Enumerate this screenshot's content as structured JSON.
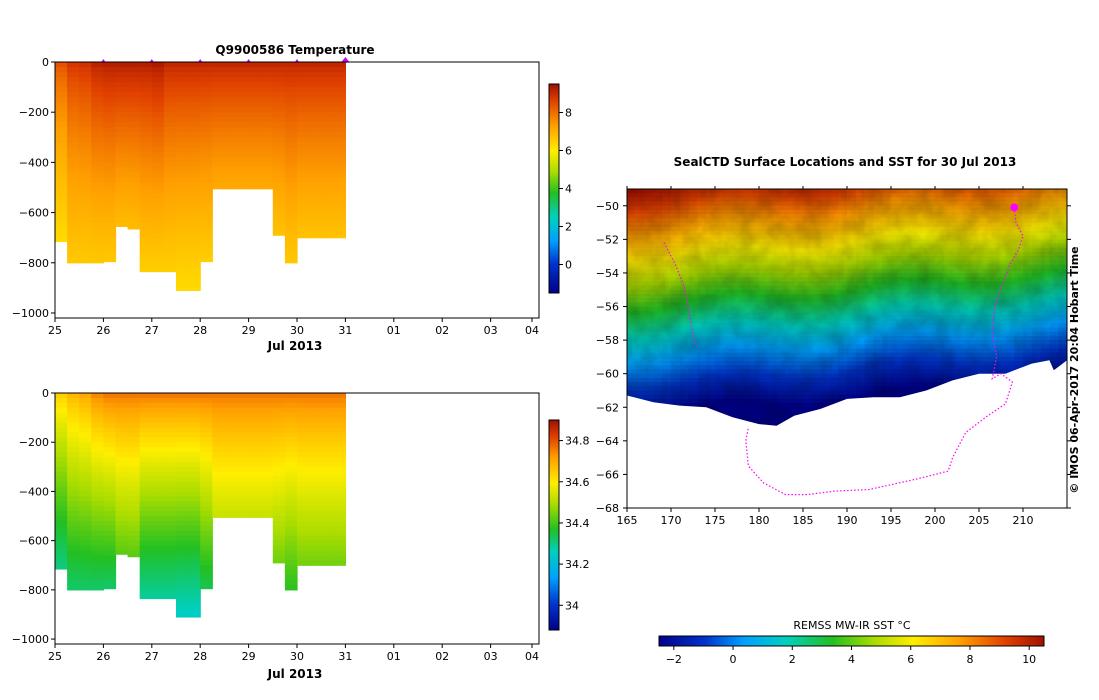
{
  "chart_data": [
    {
      "type": "heatmap",
      "title": "Q9900586  Temperature",
      "xlabel": "Jul 2013",
      "ylabel": "",
      "x_tick_labels": [
        "25",
        "26",
        "27",
        "28",
        "29",
        "30",
        "31",
        "01",
        "02",
        "03",
        "04"
      ],
      "y_ticks": [
        0,
        -200,
        -400,
        -600,
        -800,
        -1000
      ],
      "xlim": [
        "2013-07-25",
        "2013-08-04"
      ],
      "ylim": [
        -1020,
        0
      ],
      "colorbar": {
        "ticks": [
          0,
          2,
          4,
          6,
          8
        ],
        "range": [
          -1.5,
          9.5
        ]
      },
      "profiles": [
        {
          "t": "2013-07-25.00",
          "depth": -715,
          "surface": 8.3,
          "bottom": 6.3
        },
        {
          "t": "2013-07-25.25",
          "depth": -800,
          "surface": 8.7,
          "bottom": 6.6
        },
        {
          "t": "2013-07-25.50",
          "depth": -800,
          "surface": 8.8,
          "bottom": 6.6
        },
        {
          "t": "2013-07-25.75",
          "depth": -800,
          "surface": 9.1,
          "bottom": 6.6
        },
        {
          "t": "2013-07-26.00",
          "depth": -795,
          "surface": 9.2,
          "bottom": 6.6
        },
        {
          "t": "2013-07-26.25",
          "depth": -655,
          "surface": 9.2,
          "bottom": 6.8
        },
        {
          "t": "2013-07-26.50",
          "depth": -665,
          "surface": 9.2,
          "bottom": 6.8
        },
        {
          "t": "2013-07-26.75",
          "depth": -835,
          "surface": 9.2,
          "bottom": 6.5
        },
        {
          "t": "2013-07-27.00",
          "depth": -835,
          "surface": 9.3,
          "bottom": 6.5
        },
        {
          "t": "2013-07-27.25",
          "depth": -835,
          "surface": 9.0,
          "bottom": 6.5
        },
        {
          "t": "2013-07-27.50",
          "depth": -910,
          "surface": 9.0,
          "bottom": 6.3
        },
        {
          "t": "2013-07-27.75",
          "depth": -910,
          "surface": 9.0,
          "bottom": 6.3
        },
        {
          "t": "2013-07-28.00",
          "depth": -795,
          "surface": 9.0,
          "bottom": 6.5
        },
        {
          "t": "2013-07-28.25",
          "depth": -505,
          "surface": 9.0,
          "bottom": 7.1
        },
        {
          "t": "2013-07-28.50",
          "depth": -505,
          "surface": 9.0,
          "bottom": 7.1
        },
        {
          "t": "2013-07-28.75",
          "depth": -505,
          "surface": 9.0,
          "bottom": 7.1
        },
        {
          "t": "2013-07-29.00",
          "depth": -505,
          "surface": 9.0,
          "bottom": 7.1
        },
        {
          "t": "2013-07-29.25",
          "depth": -505,
          "surface": 9.0,
          "bottom": 7.1
        },
        {
          "t": "2013-07-29.50",
          "depth": -690,
          "surface": 9.0,
          "bottom": 6.7
        },
        {
          "t": "2013-07-29.75",
          "depth": -800,
          "surface": 9.0,
          "bottom": 6.6
        },
        {
          "t": "2013-07-30.00",
          "depth": -700,
          "surface": 9.0,
          "bottom": 6.7
        },
        {
          "t": "2013-07-30.25",
          "depth": -700,
          "surface": 9.0,
          "bottom": 6.7
        },
        {
          "t": "2013-07-30.50",
          "depth": -700,
          "surface": 9.0,
          "bottom": 6.7
        },
        {
          "t": "2013-07-30.75",
          "depth": -700,
          "surface": 9.0,
          "bottom": 6.7
        }
      ],
      "profile_markers": [
        "2013-07-26.00",
        "2013-07-27.00",
        "2013-07-28.00",
        "2013-07-29.00",
        "2013-07-30.00",
        "2013-07-31.00"
      ]
    },
    {
      "type": "heatmap",
      "title": "",
      "xlabel": "Jul 2013",
      "ylabel": "",
      "x_tick_labels": [
        "25",
        "26",
        "27",
        "28",
        "29",
        "30",
        "31",
        "01",
        "02",
        "03",
        "04"
      ],
      "y_ticks": [
        0,
        -200,
        -400,
        -600,
        -800,
        -1000
      ],
      "xlim": [
        "2013-07-25",
        "2013-08-04"
      ],
      "ylim": [
        -1020,
        0
      ],
      "colorbar": {
        "ticks": [
          34,
          34.2,
          34.4,
          34.6,
          34.8
        ],
        "range": [
          33.88,
          34.9
        ]
      },
      "profiles": [
        {
          "t": "2013-07-25.00",
          "depth": -715,
          "surface": 34.62,
          "bottom": 34.28
        },
        {
          "t": "2013-07-25.25",
          "depth": -800,
          "surface": 34.66,
          "bottom": 34.3
        },
        {
          "t": "2013-07-25.50",
          "depth": -800,
          "surface": 34.68,
          "bottom": 34.3
        },
        {
          "t": "2013-07-25.75",
          "depth": -800,
          "surface": 34.72,
          "bottom": 34.3
        },
        {
          "t": "2013-07-26.00",
          "depth": -795,
          "surface": 34.74,
          "bottom": 34.3
        },
        {
          "t": "2013-07-26.25",
          "depth": -655,
          "surface": 34.74,
          "bottom": 34.4
        },
        {
          "t": "2013-07-26.50",
          "depth": -665,
          "surface": 34.74,
          "bottom": 34.4
        },
        {
          "t": "2013-07-26.75",
          "depth": -835,
          "surface": 34.74,
          "bottom": 34.26
        },
        {
          "t": "2013-07-27.00",
          "depth": -835,
          "surface": 34.74,
          "bottom": 34.26
        },
        {
          "t": "2013-07-27.25",
          "depth": -835,
          "surface": 34.74,
          "bottom": 34.26
        },
        {
          "t": "2013-07-27.50",
          "depth": -910,
          "surface": 34.74,
          "bottom": 34.22
        },
        {
          "t": "2013-07-27.75",
          "depth": -910,
          "surface": 34.74,
          "bottom": 34.22
        },
        {
          "t": "2013-07-28.00",
          "depth": -795,
          "surface": 34.74,
          "bottom": 34.32
        },
        {
          "t": "2013-07-28.25",
          "depth": -505,
          "surface": 34.74,
          "bottom": 34.5
        },
        {
          "t": "2013-07-28.50",
          "depth": -505,
          "surface": 34.74,
          "bottom": 34.5
        },
        {
          "t": "2013-07-28.75",
          "depth": -505,
          "surface": 34.74,
          "bottom": 34.5
        },
        {
          "t": "2013-07-29.00",
          "depth": -505,
          "surface": 34.74,
          "bottom": 34.5
        },
        {
          "t": "2013-07-29.25",
          "depth": -505,
          "surface": 34.74,
          "bottom": 34.5
        },
        {
          "t": "2013-07-29.50",
          "depth": -690,
          "surface": 34.74,
          "bottom": 34.42
        },
        {
          "t": "2013-07-29.75",
          "depth": -800,
          "surface": 34.74,
          "bottom": 34.36
        },
        {
          "t": "2013-07-30.00",
          "depth": -700,
          "surface": 34.74,
          "bottom": 34.42
        },
        {
          "t": "2013-07-30.25",
          "depth": -700,
          "surface": 34.74,
          "bottom": 34.42
        },
        {
          "t": "2013-07-30.50",
          "depth": -700,
          "surface": 34.74,
          "bottom": 34.42
        },
        {
          "t": "2013-07-30.75",
          "depth": -700,
          "surface": 34.74,
          "bottom": 34.42
        }
      ]
    },
    {
      "type": "heatmap",
      "title": "SealCTD Surface Locations and SST for 30 Jul 2013",
      "xlabel": "",
      "ylabel": "",
      "x_tick_labels": [
        "165",
        "170",
        "175",
        "180",
        "185",
        "190",
        "195",
        "200",
        "205",
        "210"
      ],
      "y_tick_labels": [
        "-50",
        "-52",
        "-54",
        "-56",
        "-58",
        "-60",
        "-62",
        "-64",
        "-66",
        "-68"
      ],
      "xlim": [
        165,
        215
      ],
      "ylim": [
        -68,
        -49
      ],
      "colorbar": {
        "label": "REMSS MW-IR SST °C",
        "ticks": [
          -2,
          0,
          2,
          4,
          6,
          8,
          10
        ],
        "range": [
          -2.5,
          10.5
        ]
      },
      "side_label": "©  IMOS 06-Apr-2017 20:04 Hobart Time",
      "track_points": [
        [
          209.0,
          -50.1
        ],
        [
          209.2,
          -51.0
        ],
        [
          210.0,
          -51.8
        ],
        [
          209.5,
          -52.6
        ],
        [
          208.5,
          -53.5
        ],
        [
          207.8,
          -54.5
        ],
        [
          206.8,
          -56.0
        ],
        [
          206.5,
          -57.5
        ],
        [
          207.0,
          -59.0
        ],
        [
          206.5,
          -60.3
        ],
        [
          207.5,
          -60.0
        ],
        [
          208.8,
          -60.5
        ],
        [
          208.0,
          -61.8
        ],
        [
          206.0,
          -62.5
        ],
        [
          203.5,
          -63.5
        ],
        [
          202.0,
          -65.0
        ],
        [
          201.5,
          -65.8
        ],
        [
          198.5,
          -66.2
        ],
        [
          196.0,
          -66.5
        ],
        [
          192.5,
          -66.9
        ],
        [
          188.5,
          -67.0
        ],
        [
          185.5,
          -67.2
        ],
        [
          183.0,
          -67.2
        ],
        [
          180.5,
          -66.5
        ],
        [
          178.8,
          -65.5
        ],
        [
          178.5,
          -64.0
        ],
        [
          178.8,
          -63.2
        ]
      ],
      "west_track_points": [
        [
          169.2,
          -52.2
        ],
        [
          170.5,
          -53.5
        ],
        [
          171.5,
          -54.8
        ],
        [
          172.0,
          -56.2
        ],
        [
          172.4,
          -57.5
        ],
        [
          173.0,
          -58.5
        ]
      ],
      "latest_position": [
        209.0,
        -50.1
      ]
    }
  ]
}
